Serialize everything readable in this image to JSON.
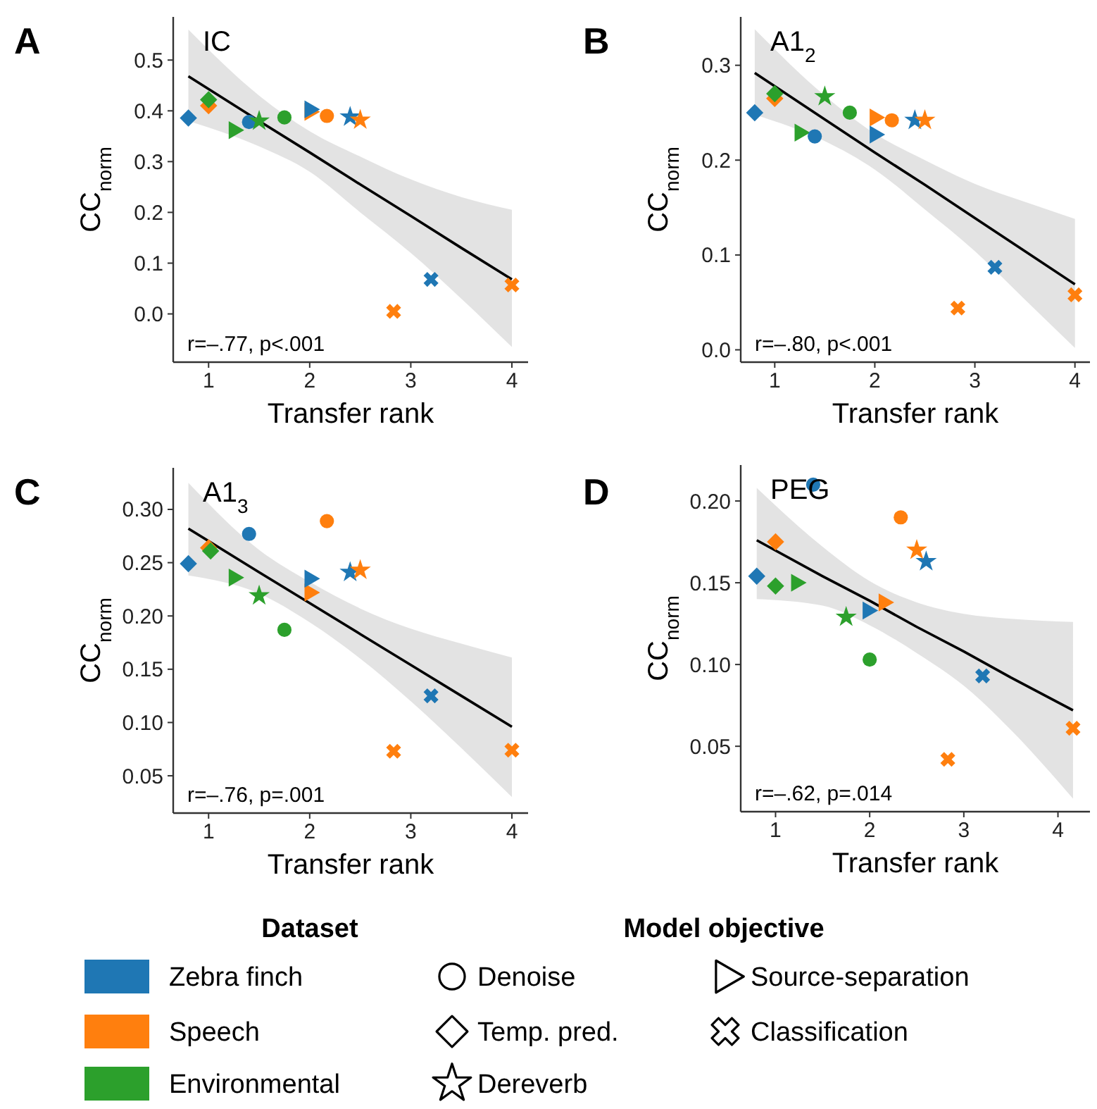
{
  "chart_data": [
    {
      "type": "scatter",
      "title": "IC",
      "xlabel": "Transfer rank",
      "ylabel": "CC$_{norm}$",
      "annotations": [
        "A",
        "r=–.77, p<.001"
      ],
      "xlim": [
        0.65,
        4.16
      ],
      "xticks": [
        1,
        2,
        3,
        4
      ],
      "ylim": [
        -0.095,
        0.585
      ],
      "yticks": [
        {
          "value": 0,
          "label": "0.0"
        },
        0.1,
        0.2,
        0.3,
        0.4,
        0.5
      ],
      "grid": false,
      "series": [
        {
          "type": "line",
          "color": "#000000",
          "x": [
            0.8,
            1.5,
            2,
            2.5,
            3,
            3.5,
            4
          ],
          "values": [
            0.468,
            0.38,
            0.318,
            0.255,
            0.193,
            0.13,
            0.068
          ],
          "lower": [
            0.38,
            0.33,
            0.28,
            0.2,
            0.12,
            0.03,
            -0.065
          ],
          "upper": [
            0.56,
            0.43,
            0.36,
            0.31,
            0.265,
            0.23,
            0.205
          ]
        },
        {
          "color": "#1f77b4",
          "marker": "diamond",
          "x": [
            0.8
          ],
          "values": [
            0.386
          ]
        },
        {
          "color": "#ff7f0e",
          "marker": "diamond",
          "x": [
            1.0
          ],
          "values": [
            0.41
          ]
        },
        {
          "color": "#2ca02c",
          "marker": "diamond",
          "x": [
            1.0
          ],
          "values": [
            0.422
          ]
        },
        {
          "color": "#2ca02c",
          "marker": "triangle",
          "x": [
            1.25
          ],
          "values": [
            0.362
          ]
        },
        {
          "color": "#1f77b4",
          "marker": "circle",
          "x": [
            1.4
          ],
          "values": [
            0.378
          ]
        },
        {
          "color": "#2ca02c",
          "marker": "star",
          "x": [
            1.5
          ],
          "values": [
            0.38
          ]
        },
        {
          "color": "#2ca02c",
          "marker": "circle",
          "x": [
            1.75
          ],
          "values": [
            0.387
          ]
        },
        {
          "color": "#ff7f0e",
          "marker": "triangle",
          "x": [
            2.0
          ],
          "values": [
            0.398
          ]
        },
        {
          "color": "#1f77b4",
          "marker": "triangle",
          "x": [
            2.0
          ],
          "values": [
            0.403
          ]
        },
        {
          "color": "#ff7f0e",
          "marker": "circle",
          "x": [
            2.17
          ],
          "values": [
            0.39
          ]
        },
        {
          "color": "#1f77b4",
          "marker": "star",
          "x": [
            2.4
          ],
          "values": [
            0.388
          ]
        },
        {
          "color": "#ff7f0e",
          "marker": "star",
          "x": [
            2.5
          ],
          "values": [
            0.382
          ]
        },
        {
          "color": "#1f77b4",
          "marker": "cross",
          "x": [
            3.2
          ],
          "values": [
            0.068
          ]
        },
        {
          "color": "#ff7f0e",
          "marker": "cross",
          "x": [
            2.83,
            4.0
          ],
          "values": [
            0.005,
            0.057
          ]
        }
      ]
    },
    {
      "type": "scatter",
      "title": "A1$_{2}$",
      "xlabel": "Transfer rank",
      "ylabel": "CC$_{norm}$",
      "annotations": [
        "B",
        "r=–.80, p<.001"
      ],
      "xlim": [
        0.66,
        4.15
      ],
      "xticks": [
        1,
        2,
        3,
        4
      ],
      "ylim": [
        -0.013,
        0.351
      ],
      "yticks": [
        {
          "value": 0,
          "label": "0.0"
        },
        0.1,
        0.2,
        0.3
      ],
      "grid": false,
      "series": [
        {
          "type": "line",
          "color": "#000000",
          "x": [
            0.8,
            1.5,
            2,
            2.5,
            3,
            3.5,
            4
          ],
          "values": [
            0.292,
            0.243,
            0.208,
            0.174,
            0.139,
            0.104,
            0.069
          ],
          "lower": [
            0.248,
            0.22,
            0.19,
            0.148,
            0.104,
            0.053,
            0.002
          ],
          "upper": [
            0.338,
            0.268,
            0.228,
            0.2,
            0.175,
            0.156,
            0.138
          ]
        },
        {
          "color": "#1f77b4",
          "marker": "diamond",
          "x": [
            0.8
          ],
          "values": [
            0.25
          ]
        },
        {
          "color": "#ff7f0e",
          "marker": "diamond",
          "x": [
            1.0
          ],
          "values": [
            0.265
          ]
        },
        {
          "color": "#2ca02c",
          "marker": "diamond",
          "x": [
            1.0
          ],
          "values": [
            0.27
          ]
        },
        {
          "color": "#2ca02c",
          "marker": "triangle",
          "x": [
            1.25
          ],
          "values": [
            0.229
          ]
        },
        {
          "color": "#1f77b4",
          "marker": "circle",
          "x": [
            1.4
          ],
          "values": [
            0.225
          ]
        },
        {
          "color": "#2ca02c",
          "marker": "star",
          "x": [
            1.5
          ],
          "values": [
            0.267
          ]
        },
        {
          "color": "#2ca02c",
          "marker": "circle",
          "x": [
            1.75
          ],
          "values": [
            0.25
          ]
        },
        {
          "color": "#ff7f0e",
          "marker": "triangle",
          "x": [
            2.0
          ],
          "values": [
            0.245
          ]
        },
        {
          "color": "#1f77b4",
          "marker": "triangle",
          "x": [
            2.0
          ],
          "values": [
            0.227
          ]
        },
        {
          "color": "#ff7f0e",
          "marker": "circle",
          "x": [
            2.17
          ],
          "values": [
            0.242
          ]
        },
        {
          "color": "#1f77b4",
          "marker": "star",
          "x": [
            2.4
          ],
          "values": [
            0.242
          ]
        },
        {
          "color": "#ff7f0e",
          "marker": "star",
          "x": [
            2.5
          ],
          "values": [
            0.242
          ]
        },
        {
          "color": "#1f77b4",
          "marker": "cross",
          "x": [
            3.2
          ],
          "values": [
            0.087
          ]
        },
        {
          "color": "#ff7f0e",
          "marker": "cross",
          "x": [
            2.83,
            4.0
          ],
          "values": [
            0.044,
            0.058
          ]
        }
      ]
    },
    {
      "type": "scatter",
      "title": "A1$_{3}$",
      "xlabel": "Transfer rank",
      "ylabel": "CC$_{norm}$",
      "annotations": [
        "C",
        "r=–.76, p=.001"
      ],
      "xlim": [
        0.65,
        4.16
      ],
      "xticks": [
        1,
        2,
        3,
        4
      ],
      "ylim": [
        0.015,
        0.339
      ],
      "yticks": [
        0.05,
        {
          "value": 0.1,
          "label": "0.10"
        },
        0.15,
        {
          "value": 0.2,
          "label": "0.20"
        },
        0.25,
        {
          "value": 0.3,
          "label": "0.30"
        }
      ],
      "grid": false,
      "series": [
        {
          "type": "line",
          "color": "#000000",
          "x": [
            0.8,
            1.5,
            2,
            2.5,
            3,
            3.5,
            4
          ],
          "values": [
            0.282,
            0.241,
            0.212,
            0.183,
            0.154,
            0.125,
            0.096
          ],
          "lower": [
            0.238,
            0.221,
            0.194,
            0.16,
            0.12,
            0.076,
            0.03
          ],
          "upper": [
            0.325,
            0.262,
            0.232,
            0.207,
            0.188,
            0.174,
            0.161
          ]
        },
        {
          "color": "#1f77b4",
          "marker": "diamond",
          "x": [
            0.8
          ],
          "values": [
            0.249
          ]
        },
        {
          "color": "#ff7f0e",
          "marker": "diamond",
          "x": [
            1.0
          ],
          "values": [
            0.264
          ]
        },
        {
          "color": "#2ca02c",
          "marker": "diamond",
          "x": [
            1.02
          ],
          "values": [
            0.261
          ]
        },
        {
          "color": "#2ca02c",
          "marker": "triangle",
          "x": [
            1.25
          ],
          "values": [
            0.236
          ]
        },
        {
          "color": "#1f77b4",
          "marker": "circle",
          "x": [
            1.4
          ],
          "values": [
            0.277
          ]
        },
        {
          "color": "#2ca02c",
          "marker": "star",
          "x": [
            1.5
          ],
          "values": [
            0.219
          ]
        },
        {
          "color": "#2ca02c",
          "marker": "circle",
          "x": [
            1.75
          ],
          "values": [
            0.187
          ]
        },
        {
          "color": "#ff7f0e",
          "marker": "triangle",
          "x": [
            2.0
          ],
          "values": [
            0.222
          ]
        },
        {
          "color": "#1f77b4",
          "marker": "triangle",
          "x": [
            2.0
          ],
          "values": [
            0.235
          ]
        },
        {
          "color": "#ff7f0e",
          "marker": "circle",
          "x": [
            2.17
          ],
          "values": [
            0.289
          ]
        },
        {
          "color": "#1f77b4",
          "marker": "star",
          "x": [
            2.4
          ],
          "values": [
            0.241
          ]
        },
        {
          "color": "#ff7f0e",
          "marker": "star",
          "x": [
            2.5
          ],
          "values": [
            0.243
          ]
        },
        {
          "color": "#1f77b4",
          "marker": "cross",
          "x": [
            3.2
          ],
          "values": [
            0.125
          ]
        },
        {
          "color": "#ff7f0e",
          "marker": "cross",
          "x": [
            2.83,
            4.0
          ],
          "values": [
            0.073,
            0.074
          ]
        }
      ]
    },
    {
      "type": "scatter",
      "title": "PEG",
      "xlabel": "Transfer rank",
      "ylabel": "CC$_{norm}$",
      "annotations": [
        "D",
        "r=–.62, p=.014"
      ],
      "xlim": [
        0.63,
        4.34
      ],
      "xticks": [
        1,
        2,
        3,
        4
      ],
      "ylim": [
        0.01,
        0.222
      ],
      "yticks": [
        0.05,
        {
          "value": 0.1,
          "label": "0.10"
        },
        0.15,
        {
          "value": 0.2,
          "label": "0.20"
        }
      ],
      "grid": false,
      "series": [
        {
          "type": "line",
          "color": "#000000",
          "x": [
            0.8,
            1.5,
            2,
            2.5,
            3,
            3.5,
            4.16
          ],
          "values": [
            0.176,
            0.154,
            0.139,
            0.123,
            0.108,
            0.092,
            0.072
          ],
          "lower": [
            0.14,
            0.136,
            0.124,
            0.107,
            0.087,
            0.06,
            0.018
          ],
          "upper": [
            0.208,
            0.172,
            0.151,
            0.138,
            0.131,
            0.128,
            0.126
          ]
        },
        {
          "color": "#1f77b4",
          "marker": "diamond",
          "x": [
            0.8
          ],
          "values": [
            0.154
          ]
        },
        {
          "color": "#ff7f0e",
          "marker": "diamond",
          "x": [
            1.0
          ],
          "values": [
            0.175
          ]
        },
        {
          "color": "#2ca02c",
          "marker": "diamond",
          "x": [
            1.0
          ],
          "values": [
            0.148
          ]
        },
        {
          "color": "#2ca02c",
          "marker": "triangle",
          "x": [
            1.22
          ],
          "values": [
            0.15
          ]
        },
        {
          "color": "#1f77b4",
          "marker": "circle",
          "x": [
            1.4
          ],
          "values": [
            0.21
          ]
        },
        {
          "color": "#2ca02c",
          "marker": "star",
          "x": [
            1.75
          ],
          "values": [
            0.129
          ]
        },
        {
          "color": "#2ca02c",
          "marker": "circle",
          "x": [
            2.0
          ],
          "values": [
            0.103
          ]
        },
        {
          "color": "#ff7f0e",
          "marker": "triangle",
          "x": [
            2.15
          ],
          "values": [
            0.138
          ]
        },
        {
          "color": "#1f77b4",
          "marker": "triangle",
          "x": [
            1.98
          ],
          "values": [
            0.133
          ]
        },
        {
          "color": "#ff7f0e",
          "marker": "circle",
          "x": [
            2.33
          ],
          "values": [
            0.19
          ]
        },
        {
          "color": "#1f77b4",
          "marker": "star",
          "x": [
            2.6
          ],
          "values": [
            0.163
          ]
        },
        {
          "color": "#ff7f0e",
          "marker": "star",
          "x": [
            2.5
          ],
          "values": [
            0.17
          ]
        },
        {
          "color": "#1f77b4",
          "marker": "cross",
          "x": [
            3.2
          ],
          "values": [
            0.093
          ]
        },
        {
          "color": "#ff7f0e",
          "marker": "cross",
          "x": [
            2.83,
            4.16
          ],
          "values": [
            0.042,
            0.061
          ]
        }
      ]
    },
    {
      "type": "other",
      "legend_title": "Dataset",
      "categories": [
        "Zebra finch",
        "Speech",
        "Environmental"
      ],
      "colors": [
        "#1f77b4",
        "#ff7f0e",
        "#2ca02c"
      ],
      "subtitle": "Model objective",
      "annotations": [
        "Denoise",
        "Temp. pred.",
        "Dereverb",
        "Source-separation",
        "Classification"
      ]
    }
  ]
}
